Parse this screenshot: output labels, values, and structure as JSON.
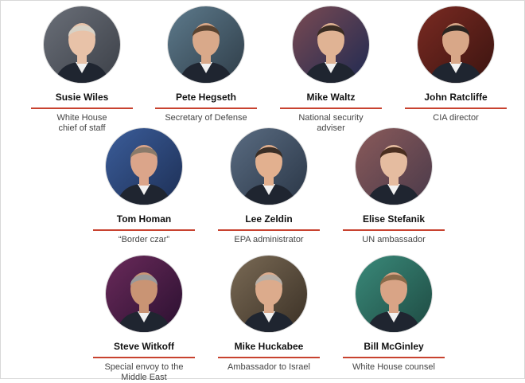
{
  "rows": [
    {
      "people": [
        {
          "name": "Susie Wiles",
          "role": [
            "White House",
            "chief of staff"
          ]
        },
        {
          "name": "Pete Hegseth",
          "role": [
            "Secretary of Defense"
          ]
        },
        {
          "name": "Mike Waltz",
          "role": [
            "National security",
            "adviser"
          ]
        },
        {
          "name": "John Ratcliffe",
          "role": [
            "CIA director"
          ]
        }
      ]
    },
    {
      "people": [
        {
          "name": "Tom Homan",
          "role": [
            "“Border czar”"
          ]
        },
        {
          "name": "Lee Zeldin",
          "role": [
            "EPA administrator"
          ]
        },
        {
          "name": "Elise Stefanik",
          "role": [
            "UN ambassador"
          ]
        }
      ]
    },
    {
      "people": [
        {
          "name": "Steve Witkoff",
          "role": [
            "Special envoy to the",
            "Middle East"
          ]
        },
        {
          "name": "Mike Huckabee",
          "role": [
            "Ambassador to Israel"
          ]
        },
        {
          "name": "Bill McGinley",
          "role": [
            "White House counsel"
          ]
        }
      ]
    }
  ]
}
